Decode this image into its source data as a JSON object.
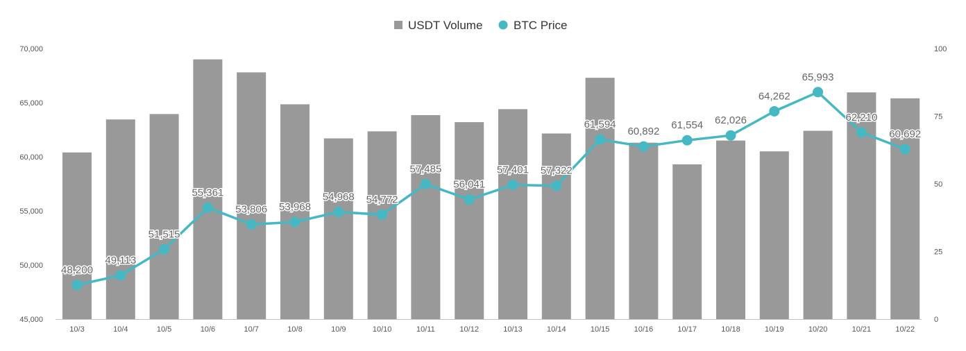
{
  "chart_data": {
    "type": "bar",
    "categories": [
      "10/3",
      "10/4",
      "10/5",
      "10/6",
      "10/7",
      "10/8",
      "10/9",
      "10/10",
      "10/11",
      "10/12",
      "10/13",
      "10/14",
      "10/15",
      "10/16",
      "10/17",
      "10/18",
      "10/19",
      "10/20",
      "10/21",
      "10/22"
    ],
    "series": [
      {
        "name": "USDT Volume",
        "type": "bar",
        "axis": "left",
        "color": "#999999",
        "values": [
          60400,
          63450,
          63950,
          69000,
          67800,
          64850,
          61700,
          62350,
          63850,
          63200,
          64400,
          62150,
          67300,
          61300,
          59300,
          61500,
          60500,
          62400,
          65950,
          65400
        ]
      },
      {
        "name": "BTC Price",
        "type": "line",
        "axis": "right",
        "color": "#45b8c4",
        "values": [
          12.6,
          16.2,
          25.8,
          41.2,
          35,
          35.9,
          39.6,
          38.6,
          49.9,
          44.2,
          49.6,
          49.3,
          66.4,
          63.8,
          66.1,
          67.9,
          76.8,
          83.9,
          69,
          62.8
        ],
        "labels": [
          "48,200",
          "49,113",
          "51,515",
          "55,361",
          "53,806",
          "53,968",
          "54,968",
          "54,772",
          "57,485",
          "56,041",
          "57,401",
          "57,322",
          "61,594",
          "60,892",
          "61,554",
          "62,026",
          "64,262",
          "65,993",
          "62,210",
          "60,692"
        ]
      }
    ],
    "y_left": {
      "min": 45000,
      "max": 70000,
      "ticks": [
        "45,000",
        "50,000",
        "55,000",
        "60,000",
        "65,000",
        "70,000"
      ],
      "tick_values": [
        45000,
        50000,
        55000,
        60000,
        65000,
        70000
      ]
    },
    "y_right": {
      "min": 0,
      "max": 100,
      "ticks": [
        "0",
        "25",
        "50",
        "75",
        "100"
      ],
      "tick_values": [
        0,
        25,
        50,
        75,
        100
      ]
    },
    "legend": {
      "position": "top-center",
      "items": [
        "USDT Volume",
        "BTC Price"
      ]
    },
    "grid": false
  }
}
